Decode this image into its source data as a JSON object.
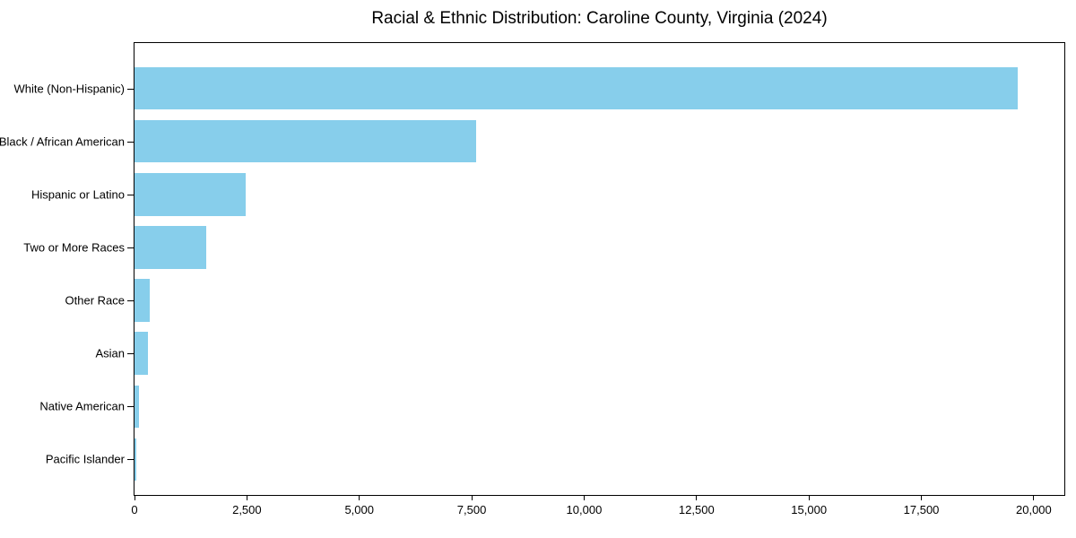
{
  "title": "Racial & Ethnic Distribution: Caroline County, Virginia (2024)",
  "chart_data": {
    "type": "bar",
    "orientation": "horizontal",
    "title": "Racial & Ethnic Distribution: Caroline County, Virginia (2024)",
    "categories": [
      "White (Non-Hispanic)",
      "Black / African American",
      "Hispanic or Latino",
      "Two or More Races",
      "Other Race",
      "Asian",
      "Native American",
      "Pacific Islander"
    ],
    "values": [
      19650,
      7600,
      2470,
      1590,
      340,
      300,
      100,
      30
    ],
    "xlabel": "",
    "ylabel": "",
    "xlim": [
      0,
      20680
    ],
    "x_ticks": [
      0,
      2500,
      5000,
      7500,
      10000,
      12500,
      15000,
      17500,
      20000
    ],
    "x_tick_labels": [
      "0",
      "2,500",
      "5,000",
      "7,500",
      "10,000",
      "12,500",
      "15,000",
      "17,500",
      "20,000"
    ],
    "bar_color": "#87CEEB",
    "axis_color": "#000000",
    "grid": false,
    "legend": null
  }
}
